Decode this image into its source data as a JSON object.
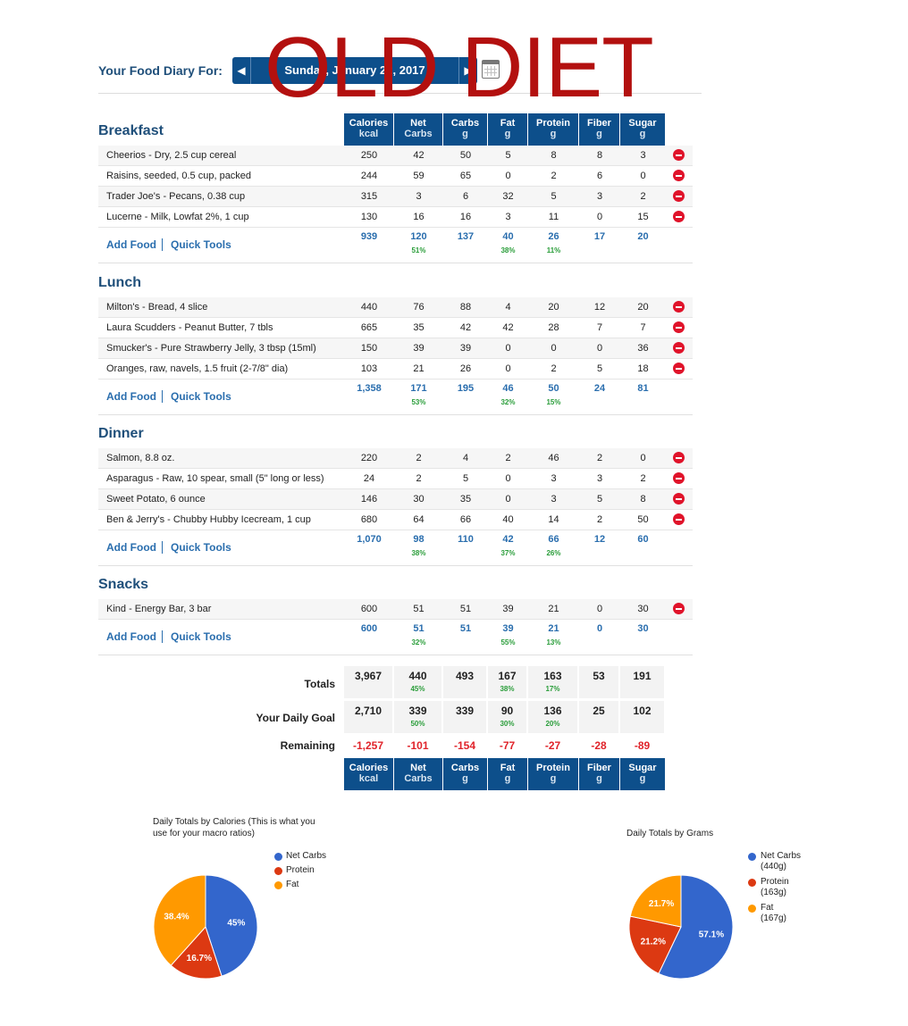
{
  "header": {
    "title": "Your Food Diary For:",
    "date": "Sunday, January 22, 2017",
    "prev_arrow": "◀",
    "next_arrow": "▶",
    "watermark": "OLD DIET"
  },
  "columns": [
    {
      "label": "Calories",
      "unit": "kcal"
    },
    {
      "label": "Net",
      "unit": "Carbs"
    },
    {
      "label": "Carbs",
      "unit": "g"
    },
    {
      "label": "Fat",
      "unit": "g"
    },
    {
      "label": "Protein",
      "unit": "g"
    },
    {
      "label": "Fiber",
      "unit": "g"
    },
    {
      "label": "Sugar",
      "unit": "g"
    }
  ],
  "links": {
    "add_food": "Add Food",
    "quick_tools": "Quick Tools"
  },
  "meals": [
    {
      "title": "Breakfast",
      "items": [
        {
          "name": "Cheerios - Dry, 2.5 cup cereal",
          "values": [
            "250",
            "42",
            "50",
            "5",
            "8",
            "8",
            "3"
          ]
        },
        {
          "name": "Raisins, seeded, 0.5 cup, packed",
          "values": [
            "244",
            "59",
            "65",
            "0",
            "2",
            "6",
            "0"
          ]
        },
        {
          "name": "Trader Joe's - Pecans, 0.38 cup",
          "values": [
            "315",
            "3",
            "6",
            "32",
            "5",
            "3",
            "2"
          ]
        },
        {
          "name": "Lucerne - Milk, Lowfat 2%, 1 cup",
          "values": [
            "130",
            "16",
            "16",
            "3",
            "11",
            "0",
            "15"
          ]
        }
      ],
      "totals": [
        "939",
        "120",
        "137",
        "40",
        "26",
        "17",
        "20"
      ],
      "pcts": [
        "",
        "51%",
        "",
        "38%",
        "11%",
        "",
        ""
      ]
    },
    {
      "title": "Lunch",
      "items": [
        {
          "name": "Milton's - Bread, 4 slice",
          "values": [
            "440",
            "76",
            "88",
            "4",
            "20",
            "12",
            "20"
          ]
        },
        {
          "name": "Laura Scudders - Peanut Butter, 7 tbls",
          "values": [
            "665",
            "35",
            "42",
            "42",
            "28",
            "7",
            "7"
          ]
        },
        {
          "name": "Smucker's - Pure Strawberry Jelly, 3 tbsp (15ml)",
          "values": [
            "150",
            "39",
            "39",
            "0",
            "0",
            "0",
            "36"
          ]
        },
        {
          "name": "Oranges, raw, navels, 1.5 fruit (2-7/8\" dia)",
          "values": [
            "103",
            "21",
            "26",
            "0",
            "2",
            "5",
            "18"
          ]
        }
      ],
      "totals": [
        "1,358",
        "171",
        "195",
        "46",
        "50",
        "24",
        "81"
      ],
      "pcts": [
        "",
        "53%",
        "",
        "32%",
        "15%",
        "",
        ""
      ]
    },
    {
      "title": "Dinner",
      "items": [
        {
          "name": "Salmon, 8.8 oz.",
          "values": [
            "220",
            "2",
            "4",
            "2",
            "46",
            "2",
            "0"
          ]
        },
        {
          "name": "Asparagus - Raw, 10 spear, small (5\" long or less)",
          "values": [
            "24",
            "2",
            "5",
            "0",
            "3",
            "3",
            "2"
          ]
        },
        {
          "name": "Sweet Potato, 6 ounce",
          "values": [
            "146",
            "30",
            "35",
            "0",
            "3",
            "5",
            "8"
          ]
        },
        {
          "name": "Ben & Jerry's - Chubby Hubby Icecream, 1 cup",
          "values": [
            "680",
            "64",
            "66",
            "40",
            "14",
            "2",
            "50"
          ]
        }
      ],
      "totals": [
        "1,070",
        "98",
        "110",
        "42",
        "66",
        "12",
        "60"
      ],
      "pcts": [
        "",
        "38%",
        "",
        "37%",
        "26%",
        "",
        ""
      ]
    },
    {
      "title": "Snacks",
      "items": [
        {
          "name": "Kind - Energy Bar, 3 bar",
          "values": [
            "600",
            "51",
            "51",
            "39",
            "21",
            "0",
            "30"
          ]
        }
      ],
      "totals": [
        "600",
        "51",
        "51",
        "39",
        "21",
        "0",
        "30"
      ],
      "pcts": [
        "",
        "32%",
        "",
        "55%",
        "13%",
        "",
        ""
      ]
    }
  ],
  "summary": {
    "totals_label": "Totals",
    "totals": [
      "3,967",
      "440",
      "493",
      "167",
      "163",
      "53",
      "191"
    ],
    "totals_pcts": [
      "",
      "45%",
      "",
      "38%",
      "17%",
      "",
      ""
    ],
    "goal_label": "Your Daily Goal",
    "goal": [
      "2,710",
      "339",
      "339",
      "90",
      "136",
      "25",
      "102"
    ],
    "goal_pcts": [
      "",
      "50%",
      "",
      "30%",
      "20%",
      "",
      ""
    ],
    "remaining_label": "Remaining",
    "remaining": [
      "-1,257",
      "-101",
      "-154",
      "-77",
      "-27",
      "-28",
      "-89"
    ]
  },
  "colors": {
    "net_carbs": "#3366cc",
    "protein": "#dc3912",
    "fat": "#ff9900"
  },
  "chart_data": [
    {
      "type": "pie",
      "title": "Daily Totals by Calories (This is what you use for your macro ratios)",
      "title_lines": [
        "Daily Totals by Calories (This is what you",
        "use for your macro ratios)"
      ],
      "legend": [
        "Net Carbs",
        "Protein",
        "Fat"
      ],
      "slice_labels": [
        "45%",
        "16.7%",
        "38.4%"
      ],
      "values": [
        45,
        16.7,
        38.4
      ]
    },
    {
      "type": "pie",
      "title": "Daily Totals by Grams",
      "legend": [
        "Net Carbs",
        "Protein",
        "Fat"
      ],
      "legend_sub": [
        "(440g)",
        "(163g)",
        "(167g)"
      ],
      "slice_labels": [
        "57.1%",
        "21.2%",
        "21.7%"
      ],
      "values": [
        57.1,
        21.2,
        21.7
      ]
    }
  ]
}
